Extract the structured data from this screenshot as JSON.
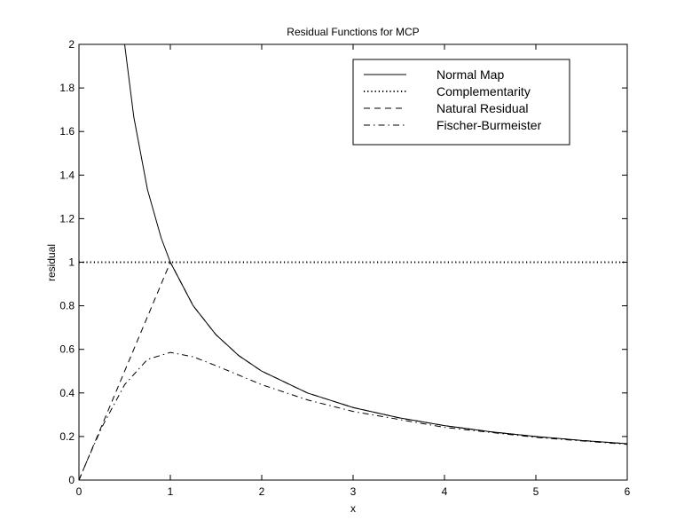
{
  "chart_data": {
    "type": "line",
    "title": "Residual Functions for MCP",
    "xlabel": "x",
    "ylabel": "residual",
    "xlim": [
      0,
      6
    ],
    "ylim": [
      0,
      2
    ],
    "xticks": [
      "0",
      "1",
      "2",
      "3",
      "4",
      "5",
      "6"
    ],
    "yticks": [
      "0",
      "0.2",
      "0.4",
      "0.6",
      "0.8",
      "1",
      "1.2",
      "1.4",
      "1.6",
      "1.8",
      "2"
    ],
    "grid": false,
    "legend_position": "top-right",
    "series": [
      {
        "name": "Normal Map",
        "style": "solid",
        "x": [
          0.5,
          0.6,
          0.75,
          0.9,
          1,
          1.25,
          1.5,
          1.75,
          2,
          2.5,
          3,
          3.5,
          4,
          4.5,
          5,
          5.5,
          6
        ],
        "y": [
          2,
          1.667,
          1.333,
          1.111,
          1,
          0.8,
          0.667,
          0.571,
          0.5,
          0.4,
          0.333,
          0.286,
          0.25,
          0.222,
          0.2,
          0.182,
          0.167
        ]
      },
      {
        "name": "Complementarity",
        "style": "dotted",
        "x": [
          0,
          6
        ],
        "y": [
          1,
          1
        ]
      },
      {
        "name": "Natural Residual",
        "style": "dashed",
        "x": [
          0,
          1,
          1.25,
          1.5,
          1.75,
          2,
          2.5,
          3,
          3.5,
          4,
          4.5,
          5,
          5.5,
          6
        ],
        "y": [
          0,
          1,
          0.8,
          0.667,
          0.571,
          0.5,
          0.4,
          0.333,
          0.286,
          0.25,
          0.222,
          0.2,
          0.182,
          0.167
        ]
      },
      {
        "name": "Fischer-Burmeister",
        "style": "dashdot",
        "x": [
          0,
          0.1,
          0.25,
          0.5,
          0.75,
          1,
          1.25,
          1.5,
          2,
          2.5,
          3,
          4,
          5,
          6
        ],
        "y": [
          0,
          0.0995,
          0.242,
          0.438,
          0.554,
          0.586,
          0.566,
          0.525,
          0.438,
          0.368,
          0.315,
          0.242,
          0.196,
          0.164
        ]
      }
    ]
  }
}
